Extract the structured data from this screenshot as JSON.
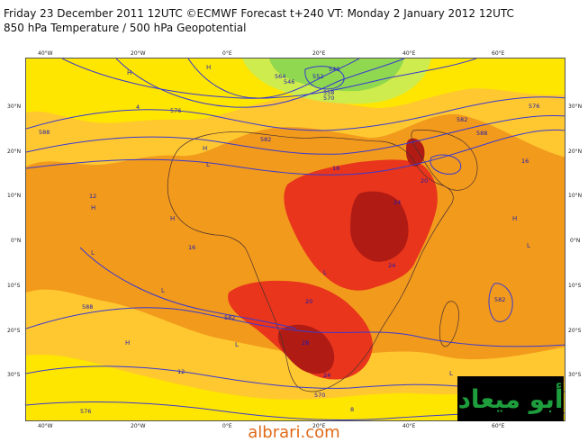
{
  "header": {
    "title": "Friday 23 December 2011 12UTC ©ECMWF Forecast t+240 VT: Monday 2 January 2012 12UTC",
    "subtitle": "850 hPa Temperature / 500 hPa Geopotential"
  },
  "longitude_ticks": [
    "40°W",
    "20°W",
    "0°E",
    "20°E",
    "40°E",
    "60°E"
  ],
  "latitude_ticks": [
    "30°N",
    "20°N",
    "10°N",
    "0°N",
    "10°S",
    "20°S",
    "30°S"
  ],
  "contour_labels": [
    "576",
    "582",
    "588",
    "564",
    "570",
    "552",
    "558",
    "546",
    "540",
    "576",
    "582",
    "588",
    "588",
    "582",
    "576",
    "570",
    "582",
    "12",
    "16",
    "20",
    "24",
    "28",
    "24",
    "20",
    "16",
    "12",
    "8",
    "4",
    "16",
    "24"
  ],
  "pressure_markers": [
    "H",
    "L"
  ],
  "logo": {
    "text": "أبو ميعاد"
  },
  "watermark": {
    "text": "albrari.com"
  },
  "colors": {
    "warm_yellow": "#ffe600",
    "light_orange": "#ffc830",
    "orange": "#f29a1c",
    "red": "#e8351c",
    "dark_red": "#b01c14",
    "green": "#8fd84f",
    "contour_blue": "#3a3ad0",
    "site_text": "#e06a1a"
  }
}
